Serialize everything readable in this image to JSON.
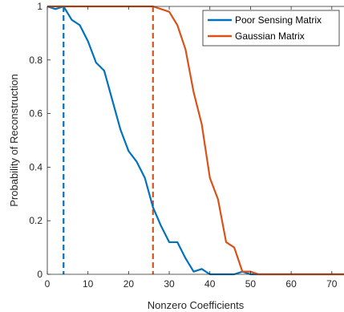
{
  "chart_data": {
    "type": "line",
    "title": "",
    "xlabel": "Nonzero Coefficients",
    "ylabel": "Probability of Reconstruction",
    "xlim": [
      0,
      73
    ],
    "ylim": [
      0,
      1
    ],
    "xticks": [
      0,
      10,
      20,
      30,
      40,
      50,
      60,
      70
    ],
    "yticks": [
      0,
      0.2,
      0.4,
      0.6,
      0.8,
      1
    ],
    "ytick_labels": [
      "0",
      "0.2",
      "0.4",
      "0.6",
      "0.8",
      "1"
    ],
    "grid": false,
    "legend_position": "top-right",
    "series": [
      {
        "name": "Poor Sensing Matrix",
        "color": "#0072BD",
        "x": [
          0,
          2,
          4,
          6,
          8,
          10,
          12,
          14,
          16,
          18,
          20,
          22,
          24,
          26,
          28,
          30,
          32,
          34,
          36,
          38,
          40,
          42,
          44,
          46,
          48,
          50,
          52,
          54,
          56,
          58,
          60,
          62,
          64,
          66,
          68,
          70,
          72,
          73
        ],
        "y": [
          1,
          0.99,
          1,
          0.95,
          0.93,
          0.87,
          0.79,
          0.76,
          0.65,
          0.54,
          0.46,
          0.42,
          0.36,
          0.25,
          0.18,
          0.12,
          0.12,
          0.06,
          0.01,
          0.02,
          0,
          0,
          0,
          0,
          0.01,
          0,
          0,
          0,
          0,
          0,
          0,
          0,
          0,
          0,
          0,
          0,
          0,
          0
        ]
      },
      {
        "name": "Gaussian Matrix",
        "color": "#D95319",
        "x": [
          0,
          2,
          4,
          6,
          8,
          10,
          12,
          14,
          16,
          18,
          20,
          22,
          24,
          26,
          28,
          30,
          32,
          34,
          36,
          38,
          40,
          42,
          44,
          46,
          48,
          50,
          52,
          54,
          56,
          58,
          60,
          62,
          64,
          66,
          68,
          70,
          72,
          73
        ],
        "y": [
          1,
          1,
          1,
          1,
          1,
          1,
          1,
          1,
          1,
          1,
          1,
          1,
          1,
          1,
          0.99,
          0.98,
          0.93,
          0.84,
          0.68,
          0.56,
          0.36,
          0.28,
          0.12,
          0.1,
          0.01,
          0.01,
          0,
          0,
          0,
          0,
          0,
          0,
          0,
          0,
          0,
          0,
          0,
          0
        ]
      }
    ],
    "vertical_lines": [
      {
        "x": 4,
        "color": "#0072BD",
        "style": "dashed"
      },
      {
        "x": 26,
        "color": "#D95319",
        "style": "dashed"
      }
    ]
  }
}
